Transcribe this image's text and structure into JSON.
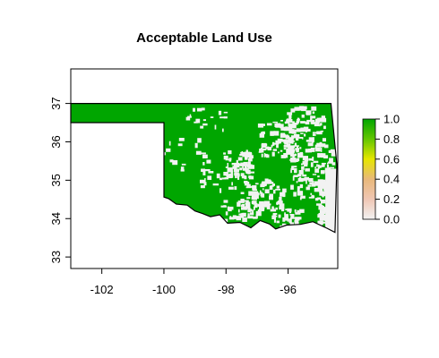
{
  "chart_data": {
    "type": "heatmap",
    "title": "Acceptable Land Use",
    "xlabel": "",
    "ylabel": "",
    "xlim": [
      -103.0,
      -94.4
    ],
    "ylim": [
      32.7,
      37.9
    ],
    "x_ticks": [
      -102,
      -100,
      -98,
      -96
    ],
    "x_tick_labels": [
      "-102",
      "-100",
      "-98",
      "-96"
    ],
    "y_ticks": [
      33,
      34,
      35,
      36,
      37
    ],
    "y_tick_labels": [
      "33",
      "34",
      "35",
      "36",
      "37"
    ],
    "region": "Oklahoma",
    "values_present": [
      0,
      1
    ],
    "dominant_value": 1,
    "legend": {
      "range": [
        0.0,
        1.0
      ],
      "ticks": [
        0.0,
        0.2,
        0.4,
        0.6,
        0.8,
        1.0
      ],
      "tick_labels": [
        "0.0",
        "0.2",
        "0.4",
        "0.6",
        "0.8",
        "1.0"
      ],
      "placement": "right"
    },
    "colors": {
      "value_1": "#00A600",
      "value_0": "#F2F2F2",
      "border": "#000000"
    },
    "grid": false
  }
}
